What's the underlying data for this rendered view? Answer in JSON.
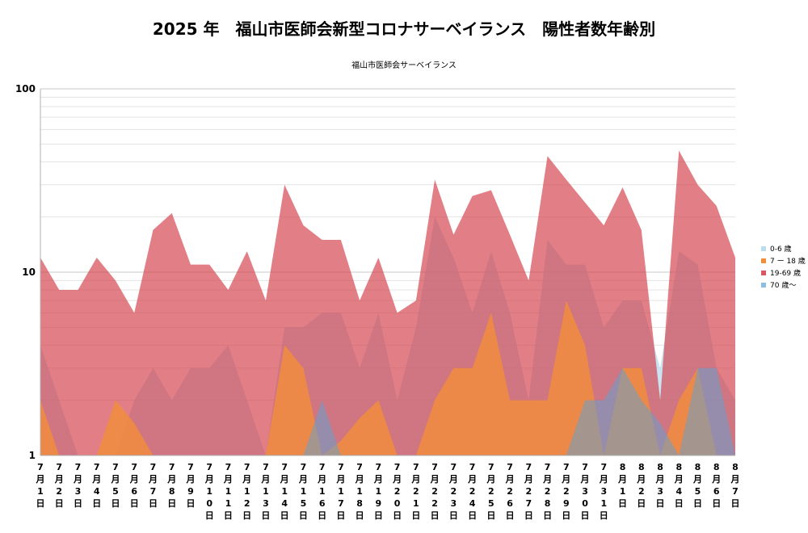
{
  "chart_data": {
    "type": "area",
    "title": "2025 年　福山市医師会新型コロナサーベイランス　陽性者数年齢別",
    "subtitle": "福山市医師会サーベイランス",
    "yscale": "log",
    "ylim": [
      1,
      100
    ],
    "ytick_labels": [
      "1",
      "10",
      "100"
    ],
    "categories": [
      "7月1日",
      "7月2日",
      "7月3日",
      "7月4日",
      "7月5日",
      "7月6日",
      "7月7日",
      "7月8日",
      "7月9日",
      "7月10日",
      "7月11日",
      "7月12日",
      "7月13日",
      "7月14日",
      "7月15日",
      "7月16日",
      "7月17日",
      "7月18日",
      "7月19日",
      "7月20日",
      "7月21日",
      "7月22日",
      "7月23日",
      "7月24日",
      "7月25日",
      "7月26日",
      "7月27日",
      "7月28日",
      "7月29日",
      "7月30日",
      "7月31日",
      "8月1日",
      "8月2日",
      "8月3日",
      "8月4日",
      "8月5日",
      "8月6日",
      "8月7日"
    ],
    "legend_position": "right",
    "grid": true,
    "series": [
      {
        "name": "0-6 歳",
        "color": "#b4d7ec",
        "opacity": 0.7,
        "values": [
          4,
          2,
          1,
          1,
          1,
          2,
          3,
          2,
          3,
          3,
          4,
          2,
          1,
          5,
          5,
          6,
          6,
          3,
          6,
          2,
          5,
          20,
          12,
          6,
          13,
          6,
          2,
          15,
          11,
          11,
          5,
          7,
          7,
          3,
          13,
          11,
          3,
          2
        ]
      },
      {
        "name": "19-69 歳",
        "color": "#d33a45",
        "opacity": 0.65,
        "values": [
          12,
          8,
          8,
          12,
          9,
          6,
          17,
          21,
          11,
          11,
          8,
          13,
          7,
          30,
          18,
          15,
          15,
          7,
          12,
          6,
          7,
          32,
          16,
          26,
          28,
          16,
          9,
          43,
          32,
          24,
          18,
          29,
          17,
          2,
          46,
          30,
          23,
          12
        ]
      },
      {
        "name": "7 ー 18 歳",
        "color": "#f28e3a",
        "opacity": 0.8,
        "values": [
          2,
          1,
          1,
          1,
          2,
          1.5,
          1,
          1,
          1,
          1,
          1,
          1,
          1,
          4,
          3,
          1,
          1.2,
          1.6,
          2,
          1,
          1,
          2,
          3,
          3,
          6,
          2,
          2,
          2,
          7,
          4,
          1,
          3,
          3,
          1,
          2,
          3,
          1,
          1
        ]
      },
      {
        "name": "70 歳〜",
        "color": "#5ba3d6",
        "opacity": 0.5,
        "values": [
          1,
          1,
          1,
          1,
          1,
          1,
          1,
          1,
          1,
          1,
          1,
          1,
          1,
          1,
          1,
          2,
          1,
          1,
          1,
          1,
          1,
          1,
          1,
          1,
          1,
          1,
          1,
          1,
          1,
          2,
          2,
          3,
          2,
          1.5,
          1,
          3,
          3,
          1
        ]
      }
    ],
    "legend_order": [
      "0-6 歳",
      "7 ー 18 歳",
      "19-69 歳",
      "70 歳〜"
    ]
  }
}
